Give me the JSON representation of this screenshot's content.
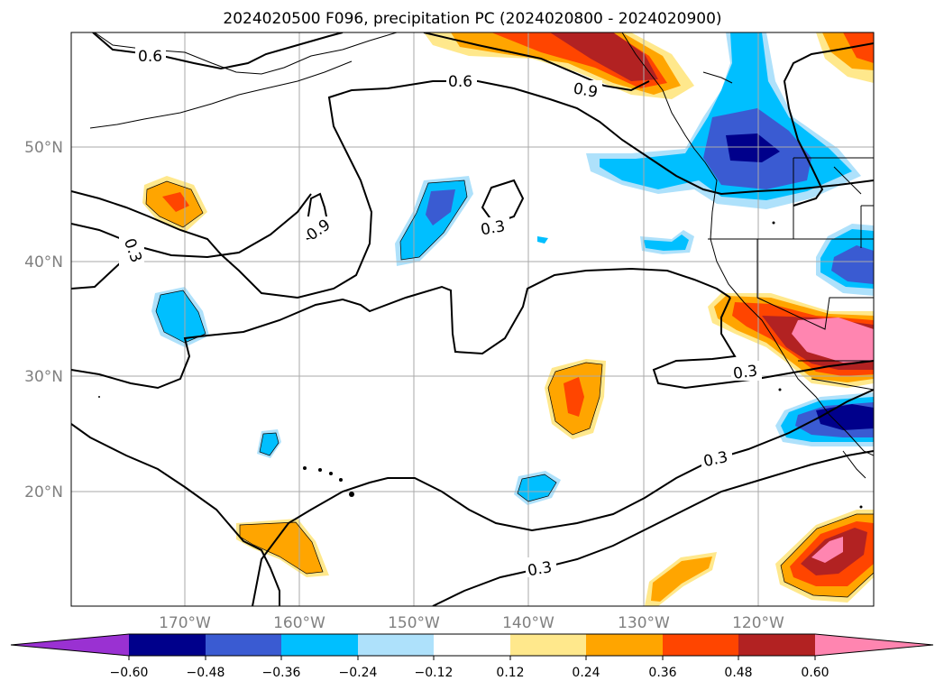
{
  "title": "2024020500 F096, precipitation PC (2024020800 - 2024020900)",
  "map": {
    "lat_labels": [
      "50°N",
      "40°N",
      "30°N",
      "20°N"
    ],
    "lon_labels": [
      "170°W",
      "160°W",
      "150°W",
      "140°W",
      "130°W",
      "120°W"
    ],
    "contour_labels": [
      "0.6",
      "0.6",
      "0.9",
      "0.9",
      "0.3",
      "0.3",
      "0.3",
      "0.3",
      "0.3"
    ]
  },
  "colorbar": {
    "tick_labels": [
      "−0.60",
      "−0.48",
      "−0.36",
      "−0.24",
      "−0.12",
      "0.12",
      "0.24",
      "0.36",
      "0.48",
      "0.60"
    ],
    "colors": [
      "#9a31d2",
      "#00008b",
      "#3a5bd2",
      "#00bfff",
      "#aee1fb",
      "#ffffff",
      "#ffe88c",
      "#ffa500",
      "#ff4500",
      "#b22222",
      "#ff85b0"
    ]
  }
}
